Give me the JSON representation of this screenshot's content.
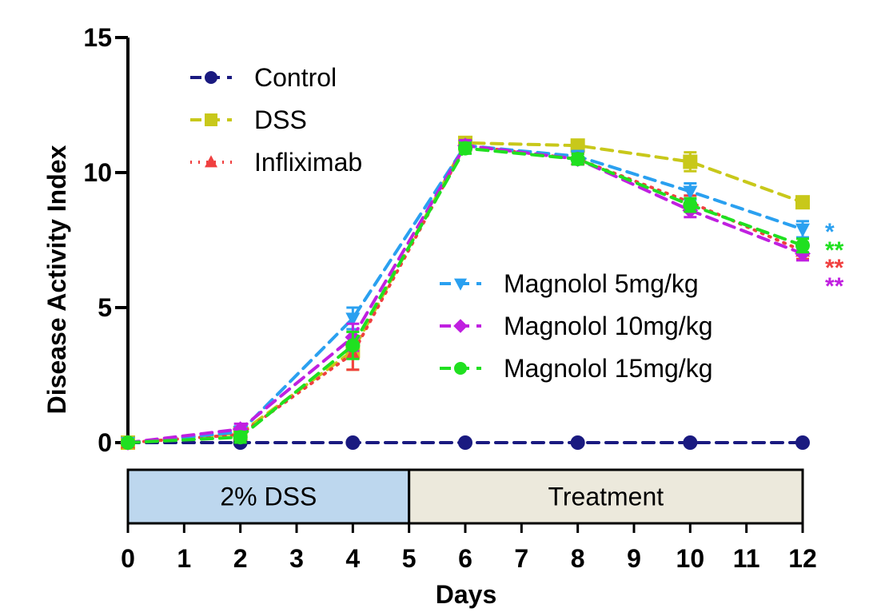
{
  "chart_data": {
    "type": "line",
    "xlabel": "Days",
    "ylabel": "Disease Activity Index",
    "xlim": [
      0,
      12
    ],
    "ylim": [
      0,
      15
    ],
    "xticks": [
      "0",
      "1",
      "2",
      "3",
      "4",
      "5",
      "6",
      "7",
      "8",
      "9",
      "10",
      "11",
      "12"
    ],
    "yticks": [
      "0",
      "5",
      "10",
      "15"
    ],
    "grid": false,
    "series": [
      {
        "name": "Control",
        "color": "#1a1a80",
        "marker": "circle",
        "dash": "dash",
        "x": [
          0,
          2,
          4,
          6,
          8,
          10,
          12
        ],
        "y": [
          0,
          0,
          0,
          0,
          0,
          0,
          0
        ],
        "err": [
          0,
          0,
          0,
          0,
          0,
          0,
          0
        ]
      },
      {
        "name": "DSS",
        "color": "#c8c81a",
        "marker": "square",
        "dash": "dash",
        "x": [
          0,
          2,
          4,
          6,
          8,
          10,
          12
        ],
        "y": [
          0,
          0.35,
          3.4,
          11.1,
          11.0,
          10.4,
          8.9
        ],
        "err": [
          0,
          0.2,
          0.7,
          0.2,
          0.2,
          0.35,
          0.2
        ]
      },
      {
        "name": "Infliximab",
        "color": "#f04040",
        "marker": "triangle-up",
        "dash": "dot",
        "x": [
          0,
          2,
          4,
          6,
          8,
          10,
          12
        ],
        "y": [
          0,
          0.3,
          3.3,
          11.0,
          10.5,
          8.9,
          7.1
        ],
        "err": [
          0,
          0.2,
          0.6,
          0.2,
          0.2,
          0.25,
          0.3
        ]
      },
      {
        "name": "Magnolol 5mg/kg",
        "color": "#2aa0f0",
        "marker": "triangle-down",
        "dash": "dash",
        "x": [
          0,
          2,
          4,
          6,
          8,
          10,
          12
        ],
        "y": [
          0,
          0.4,
          4.6,
          11.0,
          10.6,
          9.3,
          7.9
        ],
        "err": [
          0,
          0.2,
          0.4,
          0.2,
          0.2,
          0.3,
          0.3
        ]
      },
      {
        "name": "Magnolol 10mg/kg",
        "color": "#c020e0",
        "marker": "diamond",
        "dash": "dash",
        "x": [
          0,
          2,
          4,
          6,
          8,
          10,
          12
        ],
        "y": [
          0,
          0.5,
          3.9,
          11.0,
          10.5,
          8.6,
          7.0
        ],
        "err": [
          0,
          0.2,
          0.5,
          0.2,
          0.2,
          0.25,
          0.25
        ]
      },
      {
        "name": "Magnolol 15mg/kg",
        "color": "#20e020",
        "marker": "circle",
        "dash": "dash",
        "x": [
          0,
          2,
          4,
          6,
          8,
          10,
          12
        ],
        "y": [
          0,
          0.2,
          3.6,
          10.9,
          10.5,
          8.8,
          7.3
        ],
        "err": [
          0,
          0.2,
          0.5,
          0.2,
          0.2,
          0.25,
          0.25
        ]
      }
    ],
    "phases": [
      {
        "label": "2% DSS",
        "start": 0,
        "end": 5,
        "color": "#bdd7ee"
      },
      {
        "label": "Treatment",
        "start": 5,
        "end": 12,
        "color": "#ece9dc"
      }
    ],
    "significance": [
      {
        "text": "*",
        "color": "#2aa0f0"
      },
      {
        "text": "**",
        "color": "#20e020"
      },
      {
        "text": "**",
        "color": "#f04040"
      },
      {
        "text": "**",
        "color": "#c020e0"
      }
    ],
    "legend_groups": [
      {
        "placement": "top-left",
        "series": [
          "Control",
          "DSS",
          "Infliximab"
        ]
      },
      {
        "placement": "center-right",
        "series": [
          "Magnolol 5mg/kg",
          "Magnolol 10mg/kg",
          "Magnolol 15mg/kg"
        ]
      }
    ]
  }
}
